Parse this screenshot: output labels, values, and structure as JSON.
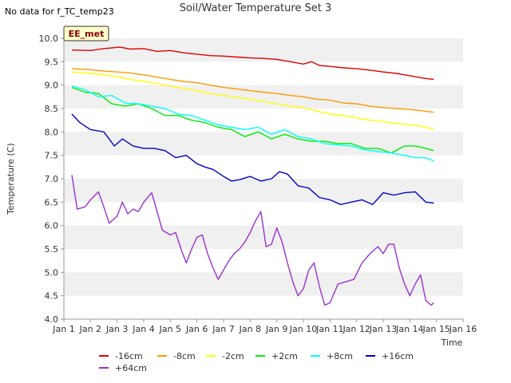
{
  "header": {
    "title": "Soil/Water Temperature Set 3",
    "no_data_note": "No data for f_TC_temp23"
  },
  "chart_data": {
    "type": "line",
    "title": "Soil/Water Temperature Set 3",
    "xlabel": "Time",
    "ylabel": "Temperature (C)",
    "xlim": [
      1,
      16
    ],
    "ylim": [
      4.0,
      10.0
    ],
    "x_ticks": [
      1,
      2,
      3,
      4,
      5,
      6,
      7,
      8,
      9,
      10,
      11,
      12,
      13,
      14,
      15,
      16
    ],
    "x_tick_labels": [
      "Jan 1",
      "Jan 2",
      "Jan 3",
      "Jan 4",
      "Jan 5",
      "Jan 6",
      "Jan 7",
      "Jan 8",
      "Jan 9",
      "Jan 10",
      "Jan 11",
      "Jan 12",
      "Jan 13",
      "Jan 14",
      "Jan 15",
      "Jan 16"
    ],
    "y_ticks": [
      4.0,
      4.5,
      5.0,
      5.5,
      6.0,
      6.5,
      7.0,
      7.5,
      8.0,
      8.5,
      9.0,
      9.5,
      10.0
    ],
    "y_tick_labels": [
      "4.0",
      "4.5",
      "5.0",
      "5.5",
      "6.0",
      "6.5",
      "7.0",
      "7.5",
      "8.0",
      "8.5",
      "9.0",
      "9.5",
      "10.0"
    ],
    "grid": "horizontal alternating bands",
    "legend_position": "bottom",
    "annotation": "EE_met",
    "series": [
      {
        "name": "-16cm",
        "color": "#dd0000",
        "x": [
          1.3,
          2.0,
          2.5,
          3.1,
          3.5,
          4.0,
          4.5,
          5.0,
          5.5,
          6.0,
          6.5,
          7.0,
          7.5,
          8.0,
          8.5,
          9.0,
          9.5,
          10.0,
          10.3,
          10.6,
          11.0,
          11.5,
          12.0,
          12.5,
          13.0,
          13.5,
          14.0,
          14.5,
          14.9
        ],
        "y": [
          9.75,
          9.74,
          9.78,
          9.81,
          9.77,
          9.78,
          9.72,
          9.74,
          9.69,
          9.66,
          9.63,
          9.62,
          9.6,
          9.58,
          9.57,
          9.55,
          9.5,
          9.45,
          9.5,
          9.42,
          9.4,
          9.37,
          9.35,
          9.32,
          9.28,
          9.25,
          9.2,
          9.15,
          9.12
        ]
      },
      {
        "name": "-8cm",
        "color": "#ff9900",
        "x": [
          1.3,
          2.0,
          2.5,
          3.0,
          3.5,
          4.0,
          4.5,
          5.0,
          5.5,
          6.0,
          6.5,
          7.0,
          7.5,
          8.0,
          8.5,
          9.0,
          9.5,
          10.0,
          10.5,
          11.0,
          11.5,
          12.0,
          12.5,
          13.0,
          13.5,
          14.0,
          14.5,
          14.9
        ],
        "y": [
          9.35,
          9.33,
          9.3,
          9.28,
          9.26,
          9.22,
          9.17,
          9.12,
          9.08,
          9.05,
          9.0,
          8.95,
          8.92,
          8.88,
          8.85,
          8.82,
          8.78,
          8.75,
          8.7,
          8.68,
          8.62,
          8.6,
          8.55,
          8.52,
          8.5,
          8.48,
          8.45,
          8.42
        ]
      },
      {
        "name": "-2cm",
        "color": "#ffff00",
        "x": [
          1.3,
          2.0,
          2.5,
          3.0,
          3.5,
          4.0,
          4.5,
          5.0,
          5.5,
          6.0,
          6.5,
          7.0,
          7.5,
          8.0,
          8.5,
          9.0,
          9.5,
          10.0,
          10.5,
          11.0,
          11.5,
          12.0,
          12.5,
          13.0,
          13.5,
          14.0,
          14.5,
          14.9
        ],
        "y": [
          9.28,
          9.25,
          9.22,
          9.18,
          9.12,
          9.08,
          9.03,
          8.98,
          8.93,
          8.88,
          8.82,
          8.78,
          8.74,
          8.7,
          8.65,
          8.6,
          8.55,
          8.52,
          8.45,
          8.38,
          8.35,
          8.3,
          8.25,
          8.22,
          8.18,
          8.15,
          8.12,
          8.05
        ]
      },
      {
        "name": "+2cm",
        "color": "#00ee00",
        "x": [
          1.3,
          1.8,
          2.3,
          2.8,
          3.3,
          3.8,
          4.3,
          4.8,
          5.3,
          5.8,
          6.3,
          6.8,
          7.3,
          7.8,
          8.3,
          8.8,
          9.3,
          9.8,
          10.3,
          10.8,
          11.3,
          11.8,
          12.3,
          12.8,
          13.3,
          13.8,
          14.2,
          14.6,
          14.9
        ],
        "y": [
          8.95,
          8.85,
          8.82,
          8.6,
          8.55,
          8.6,
          8.5,
          8.35,
          8.35,
          8.25,
          8.2,
          8.1,
          8.05,
          7.9,
          8.0,
          7.85,
          7.95,
          7.85,
          7.8,
          7.8,
          7.75,
          7.75,
          7.65,
          7.65,
          7.55,
          7.7,
          7.7,
          7.65,
          7.6
        ]
      },
      {
        "name": "+8cm",
        "color": "#00ffff",
        "x": [
          1.3,
          1.8,
          2.3,
          2.8,
          3.3,
          3.8,
          4.3,
          4.8,
          5.3,
          5.8,
          6.3,
          6.8,
          7.3,
          7.8,
          8.3,
          8.8,
          9.3,
          9.8,
          10.3,
          10.8,
          11.3,
          11.8,
          12.3,
          12.8,
          13.3,
          13.8,
          14.2,
          14.6,
          14.9
        ],
        "y": [
          8.98,
          8.9,
          8.75,
          8.78,
          8.62,
          8.6,
          8.55,
          8.5,
          8.38,
          8.35,
          8.25,
          8.15,
          8.1,
          8.05,
          8.1,
          7.95,
          8.05,
          7.9,
          7.85,
          7.75,
          7.72,
          7.7,
          7.62,
          7.58,
          7.55,
          7.5,
          7.45,
          7.45,
          7.38
        ]
      },
      {
        "name": "+16cm",
        "color": "#0000cc",
        "x": [
          1.3,
          1.6,
          2.0,
          2.5,
          2.9,
          3.2,
          3.6,
          4.0,
          4.4,
          4.8,
          5.2,
          5.6,
          6.0,
          6.3,
          6.6,
          7.0,
          7.3,
          7.6,
          8.0,
          8.4,
          8.8,
          9.1,
          9.4,
          9.8,
          10.2,
          10.6,
          11.0,
          11.4,
          11.8,
          12.2,
          12.6,
          13.0,
          13.4,
          13.8,
          14.2,
          14.6,
          14.9
        ],
        "y": [
          8.38,
          8.2,
          8.05,
          8.0,
          7.7,
          7.85,
          7.7,
          7.65,
          7.65,
          7.6,
          7.45,
          7.5,
          7.32,
          7.25,
          7.2,
          7.05,
          6.95,
          6.98,
          7.05,
          6.95,
          7.0,
          7.15,
          7.1,
          6.85,
          6.8,
          6.6,
          6.55,
          6.45,
          6.5,
          6.55,
          6.45,
          6.7,
          6.65,
          6.7,
          6.72,
          6.5,
          6.48
        ]
      },
      {
        "name": "+64cm",
        "color": "#9933cc",
        "x": [
          1.3,
          1.5,
          1.8,
          2.0,
          2.3,
          2.5,
          2.7,
          3.0,
          3.2,
          3.4,
          3.6,
          3.8,
          4.0,
          4.3,
          4.5,
          4.7,
          5.0,
          5.2,
          5.4,
          5.6,
          5.8,
          6.0,
          6.2,
          6.4,
          6.6,
          6.8,
          7.0,
          7.2,
          7.4,
          7.6,
          7.8,
          8.0,
          8.2,
          8.4,
          8.6,
          8.8,
          9.0,
          9.2,
          9.4,
          9.6,
          9.8,
          10.0,
          10.2,
          10.4,
          10.6,
          10.8,
          11.0,
          11.3,
          11.6,
          11.9,
          12.2,
          12.5,
          12.8,
          13.0,
          13.2,
          13.4,
          13.6,
          13.8,
          14.0,
          14.2,
          14.4,
          14.6,
          14.8,
          14.9
        ],
        "y": [
          7.08,
          6.35,
          6.4,
          6.55,
          6.72,
          6.4,
          6.05,
          6.2,
          6.5,
          6.25,
          6.35,
          6.3,
          6.5,
          6.7,
          6.3,
          5.9,
          5.8,
          5.85,
          5.5,
          5.2,
          5.5,
          5.75,
          5.8,
          5.4,
          5.1,
          4.85,
          5.05,
          5.25,
          5.4,
          5.5,
          5.65,
          5.85,
          6.1,
          6.3,
          5.55,
          5.6,
          5.95,
          5.65,
          5.2,
          4.8,
          4.5,
          4.65,
          5.05,
          5.2,
          4.7,
          4.3,
          4.35,
          4.75,
          4.8,
          4.85,
          5.2,
          5.4,
          5.55,
          5.4,
          5.6,
          5.6,
          5.1,
          4.75,
          4.5,
          4.75,
          4.95,
          4.4,
          4.3,
          4.35
        ]
      }
    ]
  }
}
